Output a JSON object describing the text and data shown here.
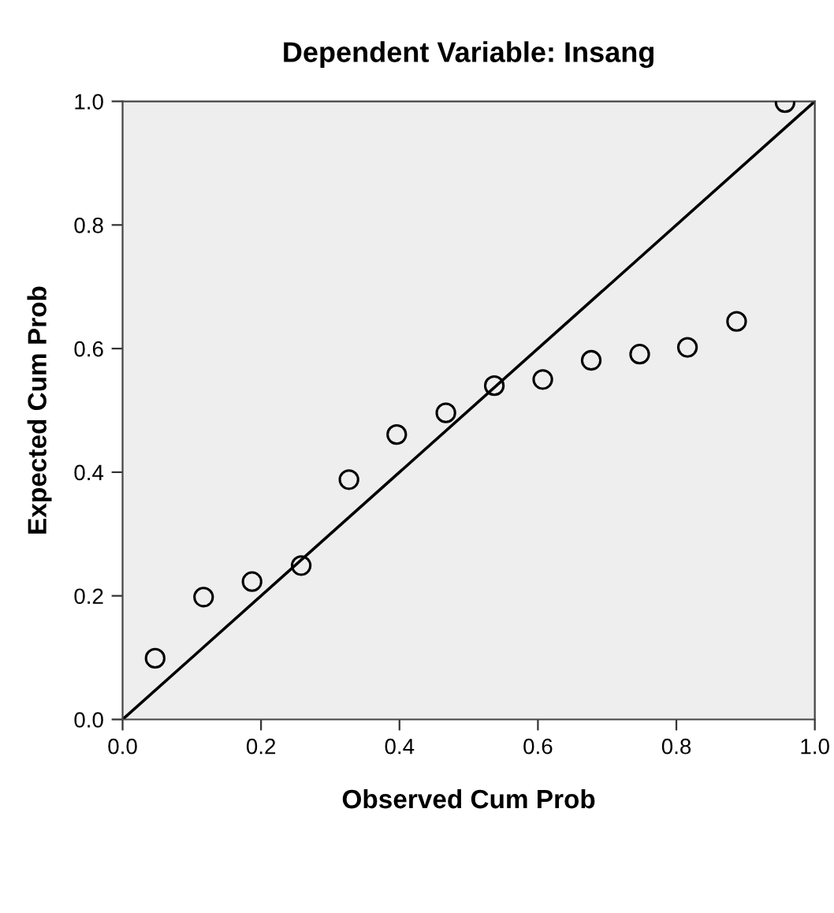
{
  "chart_data": {
    "type": "scatter",
    "title": "Dependent Variable: Insang",
    "xlabel": "Observed Cum Prob",
    "ylabel": "Expected Cum Prob",
    "xlim": [
      0,
      1
    ],
    "ylim": [
      0,
      1
    ],
    "xticks": [
      {
        "value": 0,
        "label": "0.0"
      },
      0.2,
      0.4,
      0.6,
      0.8,
      {
        "value": 1,
        "label": "1.0"
      }
    ],
    "yticks": [
      {
        "value": 0,
        "label": "0.0"
      },
      0.2,
      0.4,
      0.6,
      0.8,
      {
        "value": 1,
        "label": "1.0"
      }
    ],
    "grid": false,
    "legend": false,
    "series": [
      {
        "marker": "circle",
        "color": "#000000",
        "x": [
          0.047,
          0.117,
          0.187,
          0.258,
          0.327,
          0.396,
          0.467,
          0.537,
          0.607,
          0.677,
          0.747,
          0.816,
          0.887,
          0.957
        ],
        "values": [
          0.099,
          0.198,
          0.223,
          0.249,
          0.388,
          0.461,
          0.496,
          0.54,
          0.55,
          0.581,
          0.591,
          0.602,
          0.644,
          0.998
        ]
      },
      {
        "type": "line",
        "color": "#000000",
        "line_style": "solid",
        "marker": "none",
        "x": [
          0,
          1
        ],
        "values": [
          0,
          1
        ]
      }
    ]
  }
}
